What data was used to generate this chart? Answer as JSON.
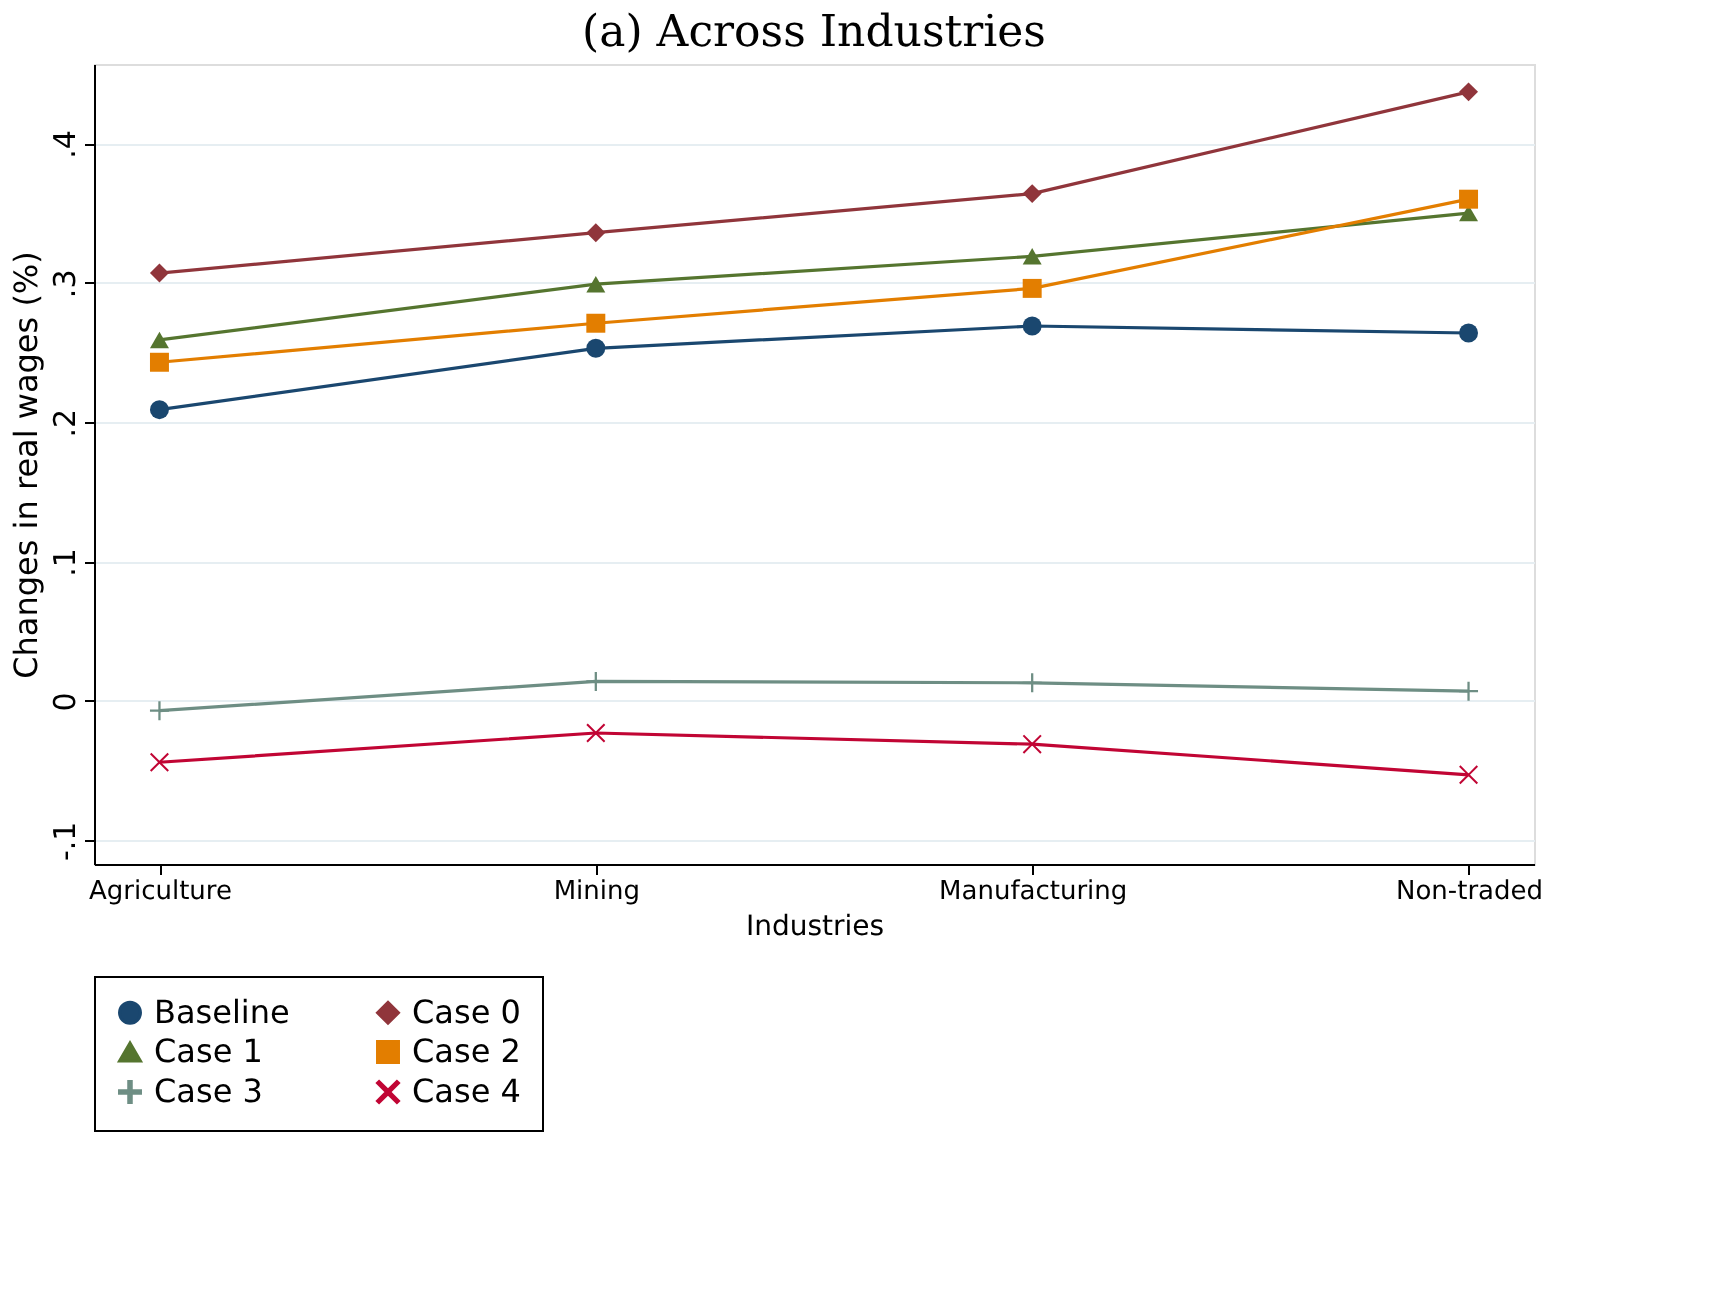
{
  "chart_data": {
    "type": "line",
    "title": "(a) Across Industries",
    "xlabel": "Industries",
    "ylabel": "Changes in real wages (%)",
    "categories": [
      "Agriculture",
      "Mining",
      "Manufacturing",
      "Non-traded"
    ],
    "series": [
      {
        "name": "Baseline",
        "color": "#1a476f",
        "marker": "circle",
        "values": [
          0.209,
          0.253,
          0.269,
          0.264
        ]
      },
      {
        "name": "Case 0",
        "color": "#90353b",
        "marker": "diamond",
        "values": [
          0.307,
          0.336,
          0.364,
          0.437
        ]
      },
      {
        "name": "Case 1",
        "color": "#55752f",
        "marker": "triangle",
        "values": [
          0.259,
          0.299,
          0.319,
          0.35
        ]
      },
      {
        "name": "Case 2",
        "color": "#e37e00",
        "marker": "square",
        "values": [
          0.243,
          0.271,
          0.296,
          0.36
        ]
      },
      {
        "name": "Case 3",
        "color": "#6e8e84",
        "marker": "cross",
        "values": [
          -0.007,
          0.014,
          0.013,
          0.007
        ]
      },
      {
        "name": "Case 4",
        "color": "#c10534",
        "marker": "x",
        "values": [
          -0.044,
          -0.023,
          -0.031,
          -0.053
        ]
      }
    ],
    "ylim": [
      -0.117,
      0.457
    ],
    "yticks": [
      {
        "value": -0.1,
        "label": "-.1"
      },
      0,
      {
        "value": 0.1,
        "label": ".1"
      },
      {
        "value": 0.2,
        "label": ".2"
      },
      {
        "value": 0.3,
        "label": ".3"
      },
      {
        "value": 0.4,
        "label": ".4"
      }
    ],
    "grid": "y",
    "legend": "bottom",
    "line_style": "solid"
  }
}
